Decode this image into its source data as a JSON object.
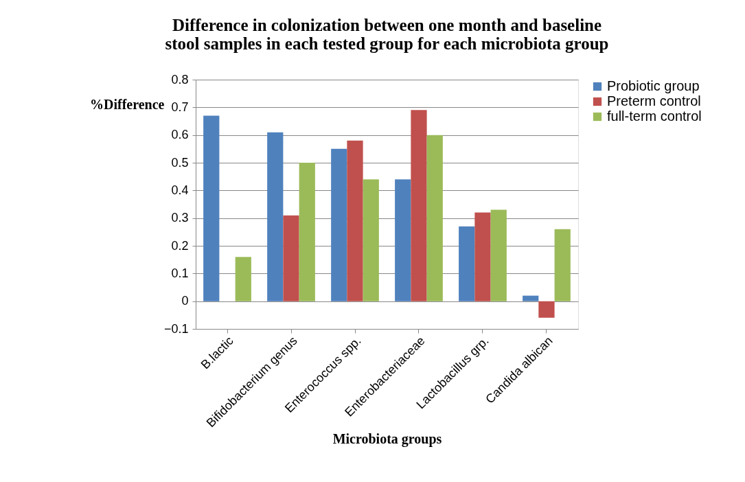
{
  "chart_data": {
    "type": "bar",
    "title": "Difference in colonization between one month and baseline stool samples in each tested group for each microbiota group",
    "xlabel": "Microbiota groups",
    "ylabel": "%Difference",
    "categories": [
      "B.lactic",
      "Bifidobacterium genus",
      "Enterococcus spp.",
      "Enterobacteriaceae",
      "Lactobacillus grp.",
      "Candida albican"
    ],
    "series": [
      {
        "name": "Probiotic group",
        "color": "#4f81bd",
        "values": [
          0.67,
          0.61,
          0.55,
          0.44,
          0.27,
          0.02
        ]
      },
      {
        "name": "Preterm control",
        "color": "#c0504d",
        "values": [
          null,
          0.31,
          0.58,
          0.69,
          0.32,
          -0.06
        ]
      },
      {
        "name": "full-term control",
        "color": "#9bbb59",
        "values": [
          0.16,
          0.5,
          0.44,
          0.6,
          0.33,
          0.26
        ]
      }
    ],
    "ylim": [
      -0.1,
      0.8
    ],
    "yticks": [
      -0.1,
      0,
      0.1,
      0.2,
      0.3,
      0.4,
      0.5,
      0.6,
      0.7,
      0.8
    ],
    "grid": "y",
    "legend": "right"
  }
}
